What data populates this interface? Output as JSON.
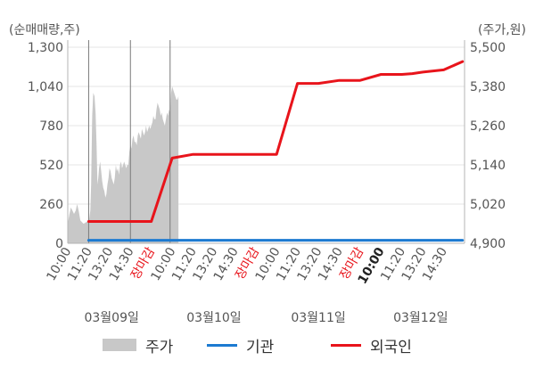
{
  "chart_data": {
    "type": "line",
    "left_axis_unit": "(순매매량,주)",
    "right_axis_unit": "(주가,원)",
    "left_ticks": [
      0,
      260,
      520,
      780,
      1040,
      1300
    ],
    "left_tick_labels": [
      "0",
      "260",
      "520",
      "780",
      "1,040",
      "1,300"
    ],
    "right_ticks": [
      4900,
      5020,
      5140,
      5260,
      5380,
      5500
    ],
    "right_tick_labels": [
      "4,900",
      "5,020",
      "5,140",
      "5,260",
      "5,380",
      "5,500"
    ],
    "ylim_left": [
      0,
      1300
    ],
    "ylim_right": [
      4900,
      5500
    ],
    "x_ticks": [
      {
        "label": "10:00",
        "pos": 0,
        "style": "normal"
      },
      {
        "label": "11:20",
        "pos": 1,
        "style": "normal"
      },
      {
        "label": "13:20",
        "pos": 2,
        "style": "normal"
      },
      {
        "label": "14:30",
        "pos": 3,
        "style": "normal"
      },
      {
        "label": "장마감",
        "pos": 4,
        "style": "close"
      },
      {
        "label": "10:00",
        "pos": 5,
        "style": "normal"
      },
      {
        "label": "11:20",
        "pos": 6,
        "style": "normal"
      },
      {
        "label": "13:20",
        "pos": 7,
        "style": "normal"
      },
      {
        "label": "14:30",
        "pos": 8,
        "style": "normal"
      },
      {
        "label": "장마감",
        "pos": 9,
        "style": "close"
      },
      {
        "label": "10:00",
        "pos": 10,
        "style": "normal"
      },
      {
        "label": "11:20",
        "pos": 11,
        "style": "normal"
      },
      {
        "label": "13:20",
        "pos": 12,
        "style": "normal"
      },
      {
        "label": "14:30",
        "pos": 13,
        "style": "normal"
      },
      {
        "label": "장마감",
        "pos": 14,
        "style": "close"
      },
      {
        "label": "10:00",
        "pos": 15,
        "style": "bold"
      },
      {
        "label": "11:20",
        "pos": 16,
        "style": "normal"
      },
      {
        "label": "13:20",
        "pos": 17,
        "style": "normal"
      },
      {
        "label": "14:30",
        "pos": 18,
        "style": "normal"
      }
    ],
    "x_max": 19,
    "vertical_lines_at": [
      1,
      3,
      4.9
    ],
    "date_labels": [
      {
        "label": "03월09일",
        "pos": 2.1
      },
      {
        "label": "03월10일",
        "pos": 7.0
      },
      {
        "label": "03월11일",
        "pos": 12.0
      },
      {
        "label": "03월12일",
        "pos": 16.9
      }
    ],
    "series": [
      {
        "name": "주가",
        "kind": "area",
        "axis": "right",
        "color": "#c8c8c8",
        "x": [
          0.0,
          0.08,
          0.15,
          0.22,
          0.3,
          0.38,
          0.45,
          0.52,
          0.6,
          0.68,
          0.75,
          0.82,
          0.88,
          0.95,
          1.02,
          1.08,
          1.12,
          1.17,
          1.22,
          1.28,
          1.33,
          1.38,
          1.42,
          1.46,
          1.5,
          1.55,
          1.6,
          1.65,
          1.7,
          1.75,
          1.8,
          1.85,
          1.9,
          1.95,
          2.0,
          2.05,
          2.1,
          2.15,
          2.2,
          2.25,
          2.3,
          2.35,
          2.4,
          2.45,
          2.5,
          2.55,
          2.6,
          2.65,
          2.7,
          2.75,
          2.8,
          2.85,
          2.9,
          2.95,
          3.0,
          3.05,
          3.1,
          3.15,
          3.2,
          3.25,
          3.3,
          3.35,
          3.4,
          3.45,
          3.5,
          3.55,
          3.6,
          3.65,
          3.7,
          3.75,
          3.8,
          3.85,
          3.9,
          3.95,
          4.0,
          4.05,
          4.1,
          4.15,
          4.2,
          4.25,
          4.3,
          4.35,
          4.4,
          4.45,
          4.5,
          4.55,
          4.6,
          4.65,
          4.7,
          4.75,
          4.8,
          4.85,
          4.9,
          4.95,
          5.0,
          5.05,
          5.1,
          5.15,
          5.2,
          5.25,
          5.3
        ],
        "values": [
          4960,
          4990,
          5010,
          5000,
          4990,
          5000,
          5020,
          5000,
          4970,
          4965,
          4960,
          4962,
          4965,
          4968,
          4970,
          5000,
          5080,
          5290,
          5360,
          5350,
          5300,
          5200,
          5080,
          5100,
          5130,
          5150,
          5120,
          5090,
          5070,
          5060,
          5040,
          5050,
          5080,
          5100,
          5130,
          5120,
          5100,
          5090,
          5080,
          5100,
          5140,
          5120,
          5130,
          5110,
          5140,
          5150,
          5130,
          5140,
          5150,
          5140,
          5130,
          5140,
          5140,
          5180,
          5200,
          5190,
          5220,
          5230,
          5210,
          5210,
          5200,
          5230,
          5240,
          5230,
          5220,
          5250,
          5240,
          5230,
          5240,
          5260,
          5240,
          5250,
          5260,
          5250,
          5260,
          5270,
          5290,
          5280,
          5280,
          5310,
          5330,
          5320,
          5310,
          5290,
          5300,
          5280,
          5270,
          5260,
          5280,
          5300,
          5290,
          5310,
          5300,
          5360,
          5380,
          5370,
          5360,
          5350,
          5340,
          5340,
          5350
        ]
      },
      {
        "name": "기관",
        "kind": "line",
        "axis": "left",
        "color": "#1c7ad1",
        "x": [
          1.0,
          18.9
        ],
        "values": [
          20,
          20
        ]
      },
      {
        "name": "외국인",
        "kind": "line",
        "axis": "left",
        "color": "#e8141b",
        "x": [
          1.0,
          2.0,
          3.0,
          4.0,
          5.0,
          6.0,
          7.0,
          8.0,
          9.0,
          10.0,
          11.0,
          12.0,
          13.0,
          14.0,
          15.0,
          15.5,
          16.0,
          16.5,
          17.0,
          18.0,
          18.9
        ],
        "values": [
          145,
          145,
          145,
          145,
          565,
          590,
          590,
          590,
          590,
          590,
          1060,
          1060,
          1080,
          1080,
          1120,
          1120,
          1120,
          1125,
          1135,
          1150,
          1205
        ]
      }
    ]
  },
  "legend": [
    {
      "label": "주가",
      "kind": "area",
      "color": "#c8c8c8"
    },
    {
      "label": "기관",
      "kind": "line",
      "color": "#1c7ad1"
    },
    {
      "label": "외국인",
      "kind": "line",
      "color": "#e8141b"
    }
  ],
  "colors": {
    "grid": "#e6e6e6",
    "axis": "#b5b5b5",
    "tick_text": "#555555",
    "close_label": "#e8141b",
    "vline": "#7a7a7a"
  }
}
